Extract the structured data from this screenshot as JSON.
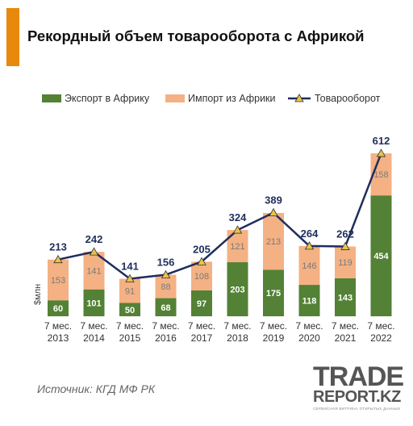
{
  "title": "Рекордный объем товарооборота с Африкой",
  "source": "Источник: КГД МФ РК",
  "logo": {
    "main": "TRADE",
    "sub": "REPORT.KZ",
    "tagline": "СЕРВИСНАЯ ВИТРИНА ОТКРЫТЫХ ДАННЫХ"
  },
  "colors": {
    "export": "#538135",
    "import": "#f4b183",
    "line": "#1f2d5c",
    "marker": "#e8c34a",
    "accent": "#e8890c"
  },
  "chart_data": {
    "type": "bar",
    "stacked": true,
    "categories": [
      "7 мес. 2013",
      "7 мес. 2014",
      "7 мес. 2015",
      "7 мес. 2016",
      "7 мес. 2017",
      "7 мес. 2018",
      "7 мес. 2019",
      "7 мес. 2020",
      "7 мес. 2021",
      "7 мес. 2022"
    ],
    "series": [
      {
        "name": "Экспорт в Африку",
        "type": "bar",
        "values": [
          60,
          101,
          50,
          68,
          97,
          203,
          175,
          118,
          143,
          454
        ]
      },
      {
        "name": "Импорт из Африки",
        "type": "bar",
        "values": [
          153,
          141,
          91,
          88,
          108,
          121,
          213,
          146,
          119,
          158
        ]
      },
      {
        "name": "Товарооборот",
        "type": "line",
        "values": [
          213,
          242,
          141,
          156,
          205,
          324,
          389,
          264,
          262,
          612
        ]
      }
    ],
    "ylabel": "$млн",
    "ylim": [
      0,
      650
    ],
    "legend": "top",
    "grid": false
  }
}
